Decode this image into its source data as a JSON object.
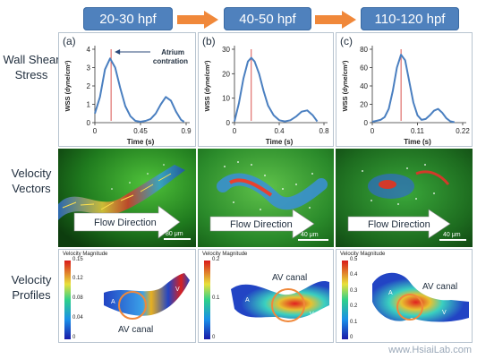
{
  "stages": [
    {
      "label": "20-30 hpf"
    },
    {
      "label": "40-50 hpf"
    },
    {
      "label": "110-120 hpf"
    }
  ],
  "row_labels": {
    "wss": "Wall Shear Stress",
    "vectors": "Velocity Vectors",
    "profiles": "Velocity Profiles"
  },
  "chart_data": [
    {
      "type": "line",
      "panel_letter": "(a)",
      "ylabel": "WSS (dyne/cm²)",
      "xlabel": "Time (s)",
      "xlim": [
        0,
        0.9
      ],
      "ylim": [
        0,
        4
      ],
      "xticks": [
        "0",
        "0.45",
        "0.9"
      ],
      "yticks": [
        "0",
        "1",
        "2",
        "3",
        "4"
      ],
      "x": [
        0,
        0.05,
        0.1,
        0.15,
        0.2,
        0.25,
        0.3,
        0.35,
        0.4,
        0.45,
        0.5,
        0.55,
        0.6,
        0.65,
        0.7,
        0.75,
        0.8,
        0.85,
        0.88
      ],
      "y": [
        0.5,
        1.4,
        2.9,
        3.5,
        3.0,
        1.9,
        0.9,
        0.35,
        0.1,
        0.05,
        0.1,
        0.2,
        0.5,
        1.0,
        1.4,
        1.2,
        0.6,
        0.15,
        0.05
      ],
      "marker_x": 0.16,
      "annotation": "Atrium contration"
    },
    {
      "type": "line",
      "panel_letter": "(b)",
      "ylabel": "WSS (dyne/cm²)",
      "xlabel": "Time (s)",
      "xlim": [
        0,
        0.8
      ],
      "ylim": [
        0,
        30
      ],
      "xticks": [
        "0",
        "0.4",
        "0.8"
      ],
      "yticks": [
        "0",
        "10",
        "20",
        "30"
      ],
      "x": [
        0,
        0.04,
        0.08,
        0.12,
        0.15,
        0.18,
        0.22,
        0.26,
        0.3,
        0.35,
        0.4,
        0.45,
        0.5,
        0.55,
        0.6,
        0.65,
        0.7,
        0.74
      ],
      "y": [
        0.5,
        8,
        18,
        25,
        26.5,
        25,
        20,
        13,
        7,
        3,
        1,
        0.5,
        1,
        2.5,
        4.5,
        5,
        3,
        0.5
      ],
      "marker_x": 0.15
    },
    {
      "type": "line",
      "panel_letter": "(c)",
      "ylabel": "WSS (dyne/cm²)",
      "xlabel": "Time (s)",
      "xlim": [
        0,
        0.22
      ],
      "ylim": [
        0,
        80
      ],
      "xticks": [
        "0",
        "0.11",
        "0.22"
      ],
      "yticks": [
        "0",
        "20",
        "40",
        "60",
        "80"
      ],
      "x": [
        0,
        0.01,
        0.02,
        0.03,
        0.04,
        0.05,
        0.06,
        0.07,
        0.08,
        0.09,
        0.1,
        0.11,
        0.12,
        0.13,
        0.14,
        0.15,
        0.16,
        0.17,
        0.18,
        0.19,
        0.2
      ],
      "y": [
        1,
        2,
        3,
        6,
        15,
        35,
        60,
        74,
        68,
        45,
        22,
        8,
        3,
        4,
        8,
        13,
        15,
        11,
        5,
        1.5,
        0.5
      ],
      "marker_x": 0.07
    }
  ],
  "vectors": [
    {
      "flow_label": "Flow Direction",
      "scale_label": "80 μm"
    },
    {
      "flow_label": "Flow Direction",
      "scale_label": "40 μm"
    },
    {
      "flow_label": "Flow Direction",
      "scale_label": "40 μm"
    }
  ],
  "profiles": [
    {
      "cbar_title": "Velocity Magnitude",
      "cbar_ticks": [
        "0.15",
        "0.12",
        "0.08",
        "0.04",
        "0"
      ],
      "label_a": "A",
      "label_v": "V",
      "canal_label": "AV canal"
    },
    {
      "cbar_title": "Velocity Magnitude",
      "cbar_ticks": [
        "0.2",
        "0.1",
        "0"
      ],
      "label_a": "A",
      "label_v": "V",
      "canal_label": "AV canal"
    },
    {
      "cbar_title": "Velocity Magnitude",
      "cbar_ticks": [
        "0.5",
        "0.4",
        "0.3",
        "0.2",
        "0.1",
        "0"
      ],
      "label_a": "A",
      "label_v": "V",
      "canal_label": "AV canal"
    }
  ],
  "colors": {
    "stage_box": "#4f81bd",
    "arrow": "#f0883a",
    "curve": "#4a7fc0",
    "marker": "#d9534f",
    "canal_circle": "#f0883a"
  },
  "watermark": "www.HsiaiLab.com"
}
